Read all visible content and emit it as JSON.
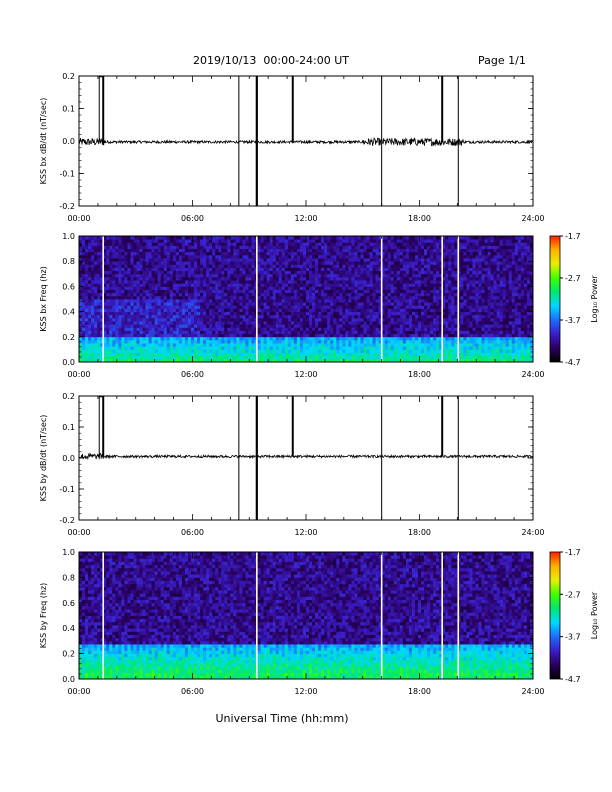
{
  "header": {
    "title": "2019/10/13  00:00-24:00 UT",
    "page": "Page 1/1"
  },
  "xlabel": "Universal Time (hh:mm)",
  "colors": {
    "trace": "#000000",
    "cbar_stops": [
      "#000000",
      "#2a0060",
      "#3a1ec8",
      "#1c6cff",
      "#00d8ff",
      "#00e870",
      "#40ff00",
      "#e8f000",
      "#ffb000",
      "#ff2000"
    ]
  },
  "chart_data": [
    {
      "type": "line",
      "ylabel": "KSS bx dB/dt (nT/sec)",
      "xlim": [
        0,
        24
      ],
      "ylim": [
        -0.2,
        0.2
      ],
      "xticks": [
        "00:00",
        "06:00",
        "12:00",
        "18:00",
        "24:00"
      ],
      "yticks": [
        "-0.2",
        "-0.1",
        "0.0",
        "0.1",
        "0.2"
      ],
      "ytick_values": [
        -0.2,
        -0.1,
        0.0,
        0.1,
        0.2
      ],
      "baseline": -0.003,
      "noise_amplitude": 0.004,
      "noisy_intervals": [
        [
          0.0,
          1.4,
          0.012
        ],
        [
          15.0,
          20.3,
          0.012
        ]
      ],
      "spikes": [
        {
          "t": 1.07,
          "range": "up"
        },
        {
          "t": 1.28,
          "range": "up"
        },
        {
          "t": 8.45,
          "range": "full"
        },
        {
          "t": 9.4,
          "range": "full"
        },
        {
          "t": 11.3,
          "range": "up"
        },
        {
          "t": 16.0,
          "range": "full"
        },
        {
          "t": 19.2,
          "range": "up"
        },
        {
          "t": 20.05,
          "range": "full"
        }
      ]
    },
    {
      "type": "heatmap",
      "ylabel": "KSS bx Freq (hz)",
      "xlim": [
        0,
        24
      ],
      "ylim": [
        0.0,
        1.0
      ],
      "xticks": [
        "00:00",
        "06:00",
        "12:00",
        "18:00",
        "24:00"
      ],
      "yticks": [
        "0.0",
        "0.2",
        "0.4",
        "0.6",
        "0.8",
        "1.0"
      ],
      "ytick_values": [
        0.0,
        0.2,
        0.4,
        0.6,
        0.8,
        1.0
      ],
      "colorbar": {
        "label": "Log₁₀ Power",
        "min": -4.7,
        "max": -1.7,
        "ticks": [
          "-1.7",
          "-2.7",
          "-3.7",
          "-4.7"
        ],
        "tick_values": [
          -1.7,
          -2.7,
          -3.7,
          -4.7
        ]
      },
      "gaps": [
        1.28,
        9.4,
        16.0,
        19.2,
        20.05
      ],
      "band_top": 0.2
    },
    {
      "type": "line",
      "ylabel": "KSS by dB/dt (nT/sec)",
      "xlim": [
        0,
        24
      ],
      "ylim": [
        -0.2,
        0.2
      ],
      "xticks": [
        "00:00",
        "06:00",
        "12:00",
        "18:00",
        "24:00"
      ],
      "yticks": [
        "-0.2",
        "-0.1",
        "0.0",
        "0.1",
        "0.2"
      ],
      "ytick_values": [
        -0.2,
        -0.1,
        0.0,
        0.1,
        0.2
      ],
      "baseline": 0.005,
      "noise_amplitude": 0.004,
      "noisy_intervals": [
        [
          0.0,
          1.4,
          0.01
        ]
      ],
      "spikes": [
        {
          "t": 1.07,
          "range": "up"
        },
        {
          "t": 1.28,
          "range": "up"
        },
        {
          "t": 8.45,
          "range": "full"
        },
        {
          "t": 9.4,
          "range": "full"
        },
        {
          "t": 11.3,
          "range": "up"
        },
        {
          "t": 16.0,
          "range": "full"
        },
        {
          "t": 19.2,
          "range": "up"
        },
        {
          "t": 20.05,
          "range": "full"
        }
      ]
    },
    {
      "type": "heatmap",
      "ylabel": "KSS by Freq (hz)",
      "xlim": [
        0,
        24
      ],
      "ylim": [
        0.0,
        1.0
      ],
      "xticks": [
        "00:00",
        "06:00",
        "12:00",
        "18:00",
        "24:00"
      ],
      "yticks": [
        "0.0",
        "0.2",
        "0.4",
        "0.6",
        "0.8",
        "1.0"
      ],
      "ytick_values": [
        0.0,
        0.2,
        0.4,
        0.6,
        0.8,
        1.0
      ],
      "colorbar": {
        "label": "Log₁₀ Power",
        "min": -4.7,
        "max": -1.7,
        "ticks": [
          "-1.7",
          "-2.7",
          "-3.7",
          "-4.7"
        ],
        "tick_values": [
          -1.7,
          -2.7,
          -3.7,
          -4.7
        ]
      },
      "gaps": [
        1.28,
        9.4,
        16.0,
        19.2,
        20.05
      ],
      "band_top": 0.28
    }
  ]
}
